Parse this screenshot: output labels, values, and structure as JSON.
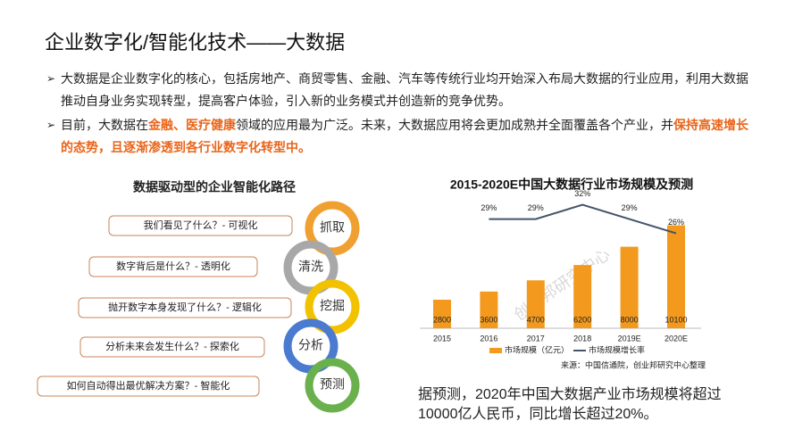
{
  "header": {
    "title": "企业数字化/智能化技术——大数据"
  },
  "bullets": [
    {
      "segments": [
        {
          "text": "大数据是企业数字化的核心，包括房地产、商贸零售、金融、汽车等传统行业均开始深入布局大数据的行业应用，利用大数据推动自身业务实现转型，提高客户体验，引入新的业务模式并创造新的竞争优势。",
          "highlight": false
        }
      ]
    },
    {
      "segments": [
        {
          "text": "目前，大数据在",
          "highlight": false
        },
        {
          "text": "金融、医疗健康",
          "highlight": true
        },
        {
          "text": "领域的应用最为广泛。未来，大数据应用将会更加成熟并全面覆盖各个产业，并",
          "highlight": false
        },
        {
          "text": "保持高速增长的态势，且逐渐渗透到各行业数字化转型中。",
          "highlight": true
        }
      ]
    }
  ],
  "diagram": {
    "title": "数据驱动型的企业智能化路径",
    "steps": [
      {
        "question": "我们看见了什么？- 可视化",
        "stage": "抓取",
        "color": "#f0a030"
      },
      {
        "question": "数字背后是什么？- 透明化",
        "stage": "清洗",
        "color": "#a8a8a8"
      },
      {
        "question": "抛开数字本身发现了什么？- 逻辑化",
        "stage": "挖掘",
        "color": "#f2c200"
      },
      {
        "question": "分析未来会发生什么？- 探索化",
        "stage": "分析",
        "color": "#4a7bd0"
      },
      {
        "question": "如何自动得出最优解决方案？- 智能化",
        "stage": "预测",
        "color": "#6ab04c"
      }
    ]
  },
  "chart_data": {
    "type": "bar",
    "title": "2015-2020E中国大数据行业市场规模及预测",
    "categories": [
      "2015",
      "2016",
      "2017",
      "2018",
      "2019E",
      "2020E"
    ],
    "series": [
      {
        "name": "市场规模（亿元）",
        "color": "#f39a1e",
        "values": [
          2800,
          3600,
          4700,
          6200,
          8000,
          10100
        ]
      },
      {
        "name": "市场规模增长率",
        "color": "#44546a",
        "axis": "y2",
        "type": "line",
        "values": [
          null,
          29,
          29,
          32,
          29,
          26
        ],
        "value_labels": [
          null,
          "29%",
          "29%",
          "32%",
          "29%",
          "26%"
        ]
      }
    ],
    "ylim": [
      0,
      10500
    ],
    "y2lim": [
      0,
      40
    ],
    "source": "来源：中国信通院，创业邦研究中心整理",
    "watermark": "创业邦研究中心"
  },
  "note": "据预测，2020年中国大数据产业市场规模将超过10000亿人民币，同比增长超过20%。"
}
